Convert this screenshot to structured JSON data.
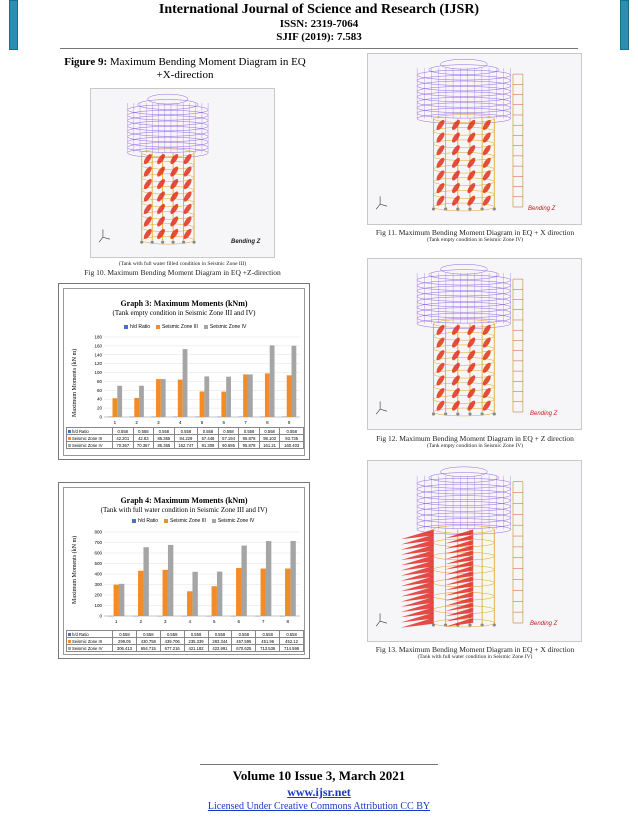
{
  "header": {
    "journal": "International Journal of Science and Research (IJSR)",
    "issn": "ISSN: 2319-7064",
    "sjif": "SJIF (2019): 7.583"
  },
  "fig9": {
    "label": "Figure 9:",
    "text": "Maximum Bending Moment Diagram in EQ +X-direction"
  },
  "fig10": {
    "bending_label": "Bending Z",
    "small_caption": "(Tank with full water filled condition in Seismic Zone III)",
    "caption": "Fig 10. Maximum Bending Moment Diagram in EQ +Z-direction"
  },
  "fig11": {
    "bending_label": "Bending Z",
    "caption": "Fig 11. Maximum Bending Moment Diagram in EQ + X direction",
    "small_caption": "(Tank empty condition in Seismic Zone IV)"
  },
  "fig12": {
    "bending_label": "Bending Z",
    "caption": "Fig 12. Maximum Bending Moment Diagram in EQ + Z direction",
    "small_caption": "(Tank empty condition in Seismic Zone IV)"
  },
  "fig13": {
    "bending_label": "Bending Z",
    "caption": "Fig 13. Maximum Bending Moment Diagram in EQ + X direction",
    "small_caption": "(Tank with full water condition in Seismic Zone IV)"
  },
  "chart_data": [
    {
      "type": "bar",
      "title": "Graph 3: Maximum Moments (kNm)",
      "subtitle": "(Tank empty condition in Seismic Zone III and IV)",
      "ylabel": "Maximum Moments (kN m)",
      "ylim": [
        0,
        180
      ],
      "yticks": [
        0,
        20,
        40,
        60,
        80,
        100,
        120,
        140,
        160,
        180
      ],
      "categories": [
        "1",
        "2",
        "3",
        "4",
        "5",
        "6",
        "7",
        "8",
        "9"
      ],
      "series": [
        {
          "name": "h/d Ratio",
          "color": "#4a6fc8",
          "values": [
            0.558,
            0.558,
            0.558,
            0.558,
            0.558,
            0.558,
            0.558,
            0.558,
            0.558
          ],
          "labels": [
            "0.558",
            "0.558",
            "0.558",
            "0.558",
            "0.558",
            "0.558",
            "0.558",
            "0.558",
            "0.558"
          ]
        },
        {
          "name": "Seismic Zone III",
          "color": "#f28c28",
          "values": [
            42.201,
            42.83,
            85.365,
            84.229,
            57.448,
            57.194,
            95.878,
            98.103,
            93.735
          ],
          "labels": [
            "42.201",
            "42.83",
            "85.365",
            "84.229",
            "57.448",
            "57.194",
            "95.878",
            "98.103",
            "93.735"
          ]
        },
        {
          "name": "Seismic Zone IV",
          "color": "#a5a5a5",
          "values": [
            70.367,
            70.367,
            85.365,
            152.747,
            91.308,
            90.686,
            95.878,
            161.21,
            160.403
          ],
          "labels": [
            "70.367",
            "70.367",
            "85.365",
            "152.747",
            "91.308",
            "90.686",
            "95.878",
            "161.21",
            "160.403"
          ]
        }
      ]
    },
    {
      "type": "bar",
      "title": "Graph 4: Maximum Moments (kNm)",
      "subtitle": "(Tank with full water condition in Seismic Zone III and IV)",
      "ylabel": "Maximum Moments (kN m)",
      "ylim": [
        0,
        800
      ],
      "yticks": [
        0,
        100,
        200,
        300,
        400,
        500,
        600,
        700,
        800
      ],
      "categories": [
        "1",
        "2",
        "3",
        "4",
        "5",
        "6",
        "7",
        "8"
      ],
      "series": [
        {
          "name": "h/d Ratio",
          "color": "#4a6fc8",
          "values": [
            0.558,
            0.558,
            0.558,
            0.558,
            0.558,
            0.558,
            0.558,
            0.558
          ],
          "labels": [
            "0.558",
            "0.558",
            "0.558",
            "0.558",
            "0.558",
            "0.558",
            "0.558",
            "0.558"
          ]
        },
        {
          "name": "Seismic Zone III",
          "color": "#f28c28",
          "values": [
            299.05,
            430.758,
            439.706,
            235.339,
            283.344,
            457.595,
            451.96,
            452.12
          ],
          "labels": [
            "299.05",
            "430.758",
            "439.706",
            "235.339",
            "283.344",
            "457.595",
            "451.96",
            "452.12"
          ]
        },
        {
          "name": "Seismic Zone IV",
          "color": "#a5a5a5",
          "values": [
            306.413,
            654.715,
            677.216,
            421.182,
            422.991,
            670.625,
            713.536,
            714.598
          ],
          "labels": [
            "306.413",
            "654.715",
            "677.216",
            "421.182",
            "422.991",
            "670.625",
            "713.536",
            "714.598"
          ]
        }
      ]
    }
  ],
  "footer": {
    "volume": "Volume 10 Issue 3, March 2021",
    "url": "www.ijsr.net",
    "license": "Licensed Under Creative Commons Attribution CC BY"
  }
}
